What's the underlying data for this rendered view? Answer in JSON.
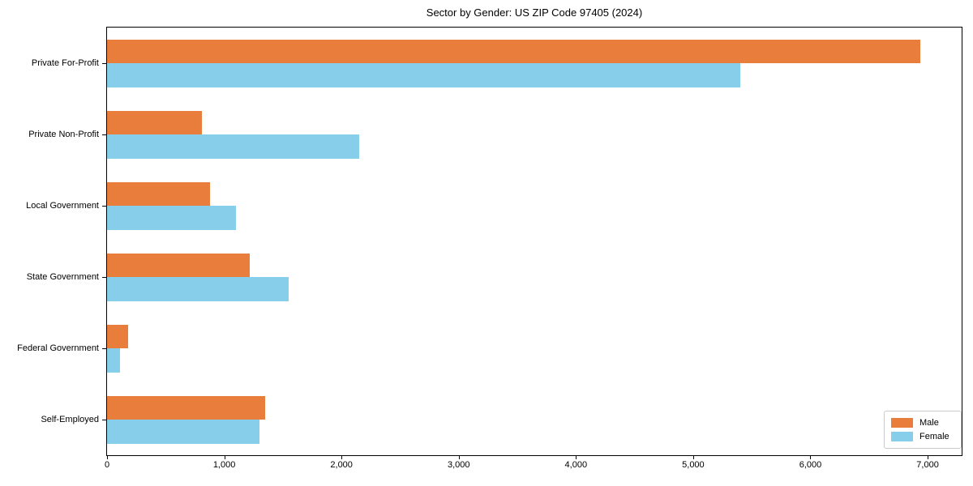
{
  "figure": {
    "title": "Sector by Gender: US ZIP Code 97405 (2024)"
  },
  "chart_data": {
    "type": "bar",
    "orientation": "horizontal",
    "title": "Sector by Gender: US ZIP Code 97405 (2024)",
    "xlabel": "",
    "ylabel": "",
    "categories": [
      "Private For-Profit",
      "Private Non-Profit",
      "Local Government",
      "State Government",
      "Federal Government",
      "Self-Employed"
    ],
    "series": [
      {
        "name": "Male",
        "color": "#e87d3c",
        "values": [
          6940,
          810,
          880,
          1220,
          180,
          1350
        ]
      },
      {
        "name": "Female",
        "color": "#87ceeb",
        "values": [
          5400,
          2150,
          1100,
          1550,
          110,
          1300
        ]
      }
    ],
    "xlim": [
      0,
      7290
    ],
    "xticks": {
      "values": [
        0,
        1000,
        2000,
        3000,
        4000,
        5000,
        6000,
        7000
      ],
      "labels": [
        "0",
        "1,000",
        "2,000",
        "3,000",
        "4,000",
        "5,000",
        "6,000",
        "7,000"
      ]
    },
    "grid": false,
    "legend": {
      "position": "lower-right",
      "entries": [
        "Male",
        "Female"
      ]
    },
    "colors": {
      "axis": "#000000",
      "background": "#ffffff",
      "legend_border": "#cccccc"
    }
  }
}
